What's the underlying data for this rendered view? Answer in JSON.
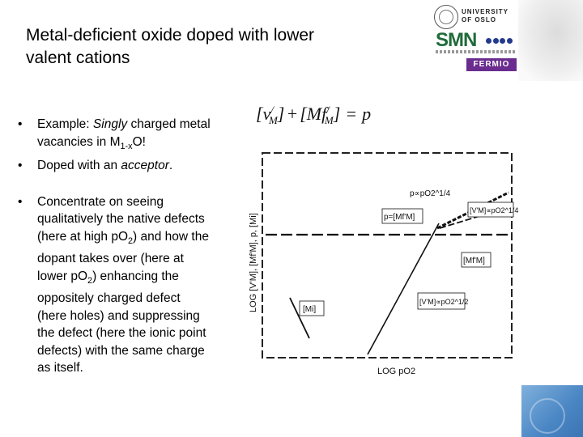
{
  "title": {
    "line1": "Metal-deficient oxide doped with lower",
    "line2": "valent cations"
  },
  "bullets": [
    {
      "pre": "Example: ",
      "em": "Singly",
      "mid": " charged metal vacancies in M",
      "sub": "1-x",
      "post": "O!"
    },
    {
      "pre": "Doped with an ",
      "em": "acceptor",
      "post": "."
    },
    {
      "parts": [
        "Concentrate on seeing qualitatively the native defects (here at high pO",
        "2",
        ") and how the dopant takes over (here at lower pO",
        "2",
        ") enhancing the oppositely charged defect (here holes) and suppressing the defect (here the ionic point defects) with the same charge as itself."
      ]
    }
  ],
  "bullet_symbol": "•",
  "logos": {
    "university": "UNIVERSITY OF OSLO",
    "smn": "SMN",
    "femtec": "FERMIO"
  },
  "figure": {
    "equation": {
      "lb1": "[",
      "v1": "v",
      "sup1": "/",
      "sub1": "M",
      "rb1": "]",
      "plus": "+",
      "lb2": "[",
      "mf": "Mf",
      "sup2": "/",
      "sub2": "M",
      "rb2": "]",
      "eq": "=",
      "p": "p"
    },
    "y_axis_label": "LOG [V'M], [Mf'M], p, [Mi]",
    "x_axis_label": "LOG pO2",
    "labels": {
      "p_slope": "p∝pO2^1/4",
      "vm_slope_top": "[V'M]∝pO2^1/4",
      "p_eq": "p=[Mf'M]",
      "mf": "[Mf'M]",
      "vm_slope_bottom": "[V'M]∝pO2^1/2",
      "mi": "[Mi]"
    },
    "colors": {
      "line": "#111111",
      "grid": "#222222"
    }
  }
}
